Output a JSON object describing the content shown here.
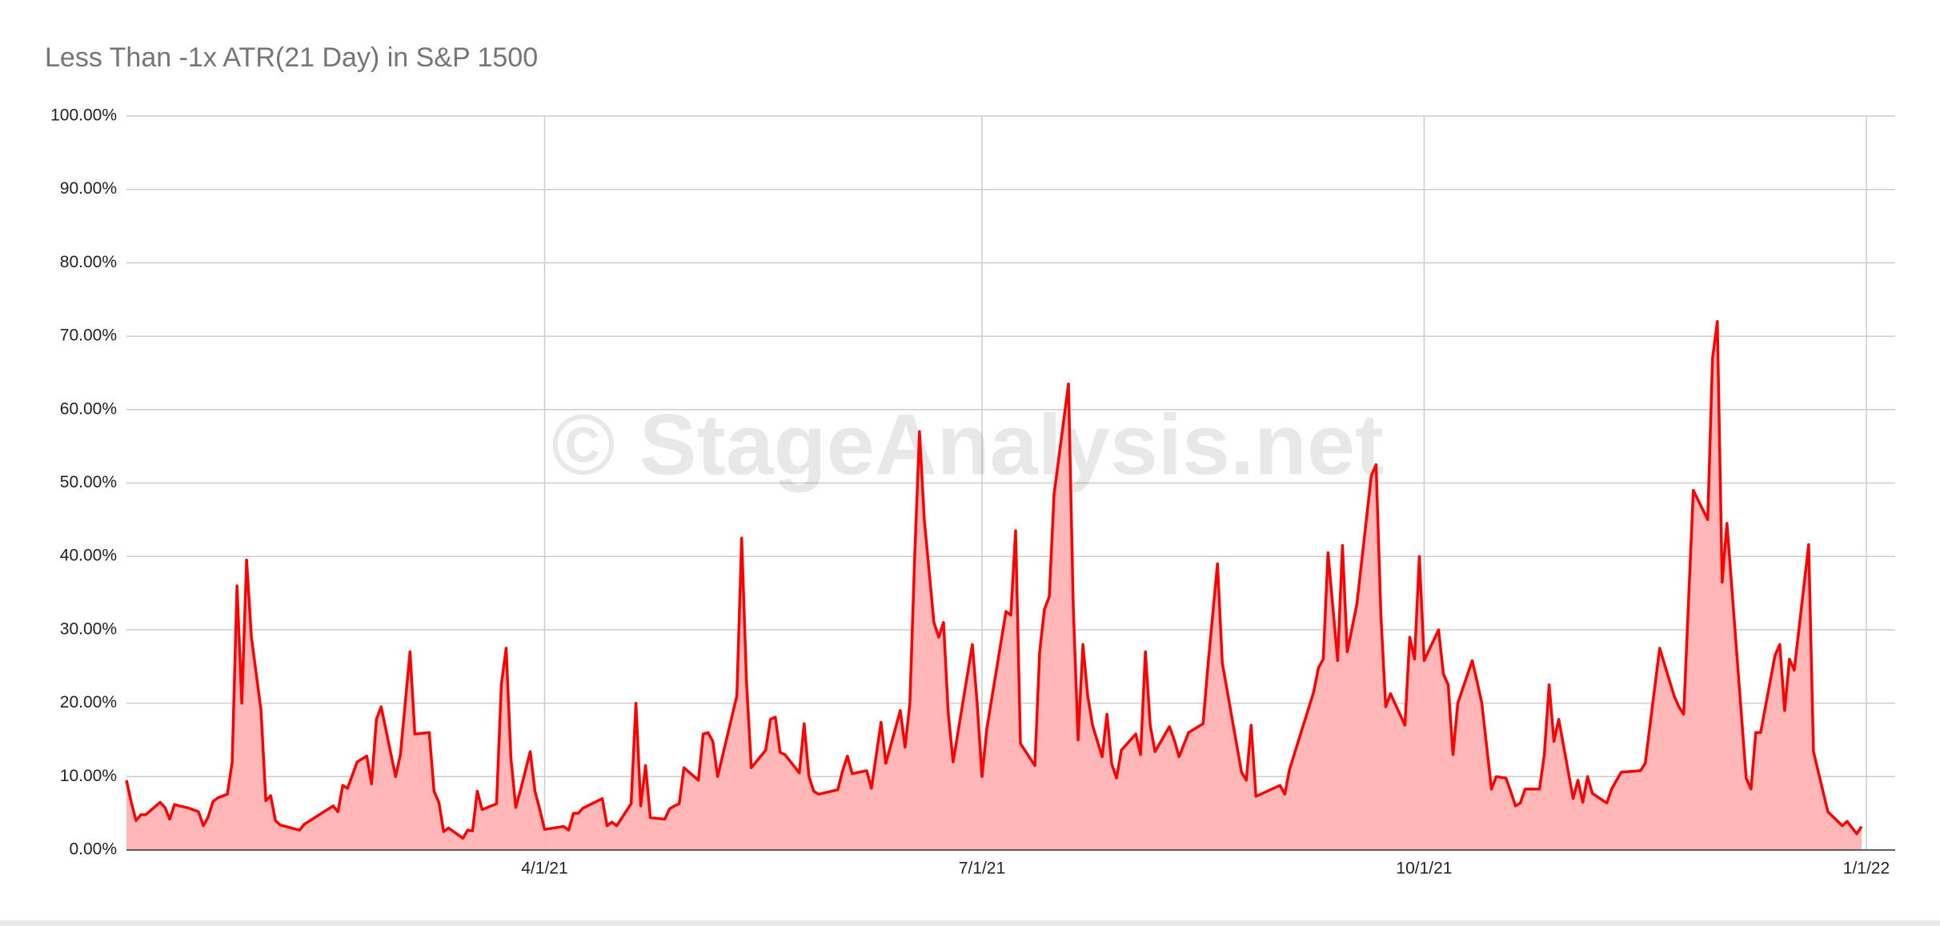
{
  "chart_data": {
    "type": "area",
    "title": "Less Than -1x ATR(21 Day) in S&P 1500",
    "watermark": "© StageAnalysis.net",
    "color": "#ff0000",
    "fill": "#ffb3b3",
    "xlim": [
      "2021-01-04",
      "2022-01-07"
    ],
    "xticks": [
      {
        "value": "2021-04-01",
        "label": "4/1/21"
      },
      {
        "value": "2021-07-01",
        "label": "7/1/21"
      },
      {
        "value": "2021-10-01",
        "label": "10/1/21"
      },
      {
        "value": "2022-01-01",
        "label": "1/1/22"
      }
    ],
    "ylim": [
      0,
      100
    ],
    "yticks": [
      {
        "value": 0,
        "label": "0.00%"
      },
      {
        "value": 10,
        "label": "10.00%"
      },
      {
        "value": 20,
        "label": "20.00%"
      },
      {
        "value": 30,
        "label": "30.00%"
      },
      {
        "value": 40,
        "label": "40.00%"
      },
      {
        "value": 50,
        "label": "50.00%"
      },
      {
        "value": 60,
        "label": "60.00%"
      },
      {
        "value": 70,
        "label": "70.00%"
      },
      {
        "value": 80,
        "label": "80.00%"
      },
      {
        "value": 90,
        "label": "90.00%"
      },
      {
        "value": 100,
        "label": "100.00%"
      }
    ],
    "grid": true,
    "x": [
      "2021-01-04",
      "2021-01-05",
      "2021-01-06",
      "2021-01-07",
      "2021-01-08",
      "2021-01-11",
      "2021-01-12",
      "2021-01-13",
      "2021-01-14",
      "2021-01-15",
      "2021-01-17",
      "2021-01-19",
      "2021-01-20",
      "2021-01-21",
      "2021-01-22",
      "2021-01-23",
      "2021-01-25",
      "2021-01-26",
      "2021-01-27",
      "2021-01-28",
      "2021-01-29",
      "2021-01-30",
      "2021-02-01",
      "2021-02-02",
      "2021-02-03",
      "2021-02-04",
      "2021-02-05",
      "2021-02-09",
      "2021-02-10",
      "2021-02-16",
      "2021-02-17",
      "2021-02-18",
      "2021-02-19",
      "2021-02-21",
      "2021-02-23",
      "2021-02-24",
      "2021-02-25",
      "2021-02-26",
      "2021-03-01",
      "2021-03-02",
      "2021-03-04",
      "2021-03-05",
      "2021-03-08",
      "2021-03-09",
      "2021-03-10",
      "2021-03-11",
      "2021-03-12",
      "2021-03-15",
      "2021-03-16",
      "2021-03-17",
      "2021-03-18",
      "2021-03-19",
      "2021-03-22",
      "2021-03-23",
      "2021-03-24",
      "2021-03-25",
      "2021-03-26",
      "2021-03-27",
      "2021-03-29",
      "2021-03-30",
      "2021-03-31",
      "2021-04-01",
      "2021-04-05",
      "2021-04-06",
      "2021-04-07",
      "2021-04-08",
      "2021-04-09",
      "2021-04-13",
      "2021-04-14",
      "2021-04-15",
      "2021-04-16",
      "2021-04-19",
      "2021-04-20",
      "2021-04-21",
      "2021-04-22",
      "2021-04-23",
      "2021-04-26",
      "2021-04-27",
      "2021-04-28",
      "2021-04-29",
      "2021-04-30",
      "2021-05-03",
      "2021-05-04",
      "2021-05-05",
      "2021-05-06",
      "2021-05-07",
      "2021-05-11",
      "2021-05-12",
      "2021-05-13",
      "2021-05-14",
      "2021-05-17",
      "2021-05-18",
      "2021-05-19",
      "2021-05-20",
      "2021-05-21",
      "2021-05-24",
      "2021-05-25",
      "2021-05-26",
      "2021-05-27",
      "2021-05-28",
      "2021-06-01",
      "2021-06-02",
      "2021-06-03",
      "2021-06-04",
      "2021-06-07",
      "2021-06-08",
      "2021-06-10",
      "2021-06-11",
      "2021-06-14",
      "2021-06-15",
      "2021-06-16",
      "2021-06-17",
      "2021-06-18",
      "2021-06-19",
      "2021-06-21",
      "2021-06-22",
      "2021-06-23",
      "2021-06-24",
      "2021-06-25",
      "2021-06-29",
      "2021-06-30",
      "2021-07-01",
      "2021-07-02",
      "2021-07-06",
      "2021-07-07",
      "2021-07-08",
      "2021-07-09",
      "2021-07-12",
      "2021-07-13",
      "2021-07-14",
      "2021-07-15",
      "2021-07-16",
      "2021-07-19",
      "2021-07-20",
      "2021-07-21",
      "2021-07-22",
      "2021-07-23",
      "2021-07-24",
      "2021-07-26",
      "2021-07-27",
      "2021-07-28",
      "2021-07-29",
      "2021-07-30",
      "2021-08-02",
      "2021-08-03",
      "2021-08-04",
      "2021-08-05",
      "2021-08-06",
      "2021-08-09",
      "2021-08-10",
      "2021-08-11",
      "2021-08-13",
      "2021-08-16",
      "2021-08-17",
      "2021-08-19",
      "2021-08-20",
      "2021-08-24",
      "2021-08-25",
      "2021-08-26",
      "2021-08-27",
      "2021-09-01",
      "2021-09-02",
      "2021-09-03",
      "2021-09-08",
      "2021-09-09",
      "2021-09-10",
      "2021-09-11",
      "2021-09-13",
      "2021-09-14",
      "2021-09-15",
      "2021-09-17",
      "2021-09-20",
      "2021-09-21",
      "2021-09-22",
      "2021-09-23",
      "2021-09-24",
      "2021-09-27",
      "2021-09-28",
      "2021-09-29",
      "2021-09-30",
      "2021-10-01",
      "2021-10-04",
      "2021-10-05",
      "2021-10-06",
      "2021-10-07",
      "2021-10-08",
      "2021-10-11",
      "2021-10-12",
      "2021-10-13",
      "2021-10-15",
      "2021-10-16",
      "2021-10-18",
      "2021-10-19",
      "2021-10-20",
      "2021-10-21",
      "2021-10-22",
      "2021-10-25",
      "2021-10-26",
      "2021-10-27",
      "2021-10-28",
      "2021-10-29",
      "2021-11-01",
      "2021-11-02",
      "2021-11-03",
      "2021-11-04",
      "2021-11-05",
      "2021-11-08",
      "2021-11-09",
      "2021-11-11",
      "2021-11-15",
      "2021-11-16",
      "2021-11-19",
      "2021-11-22",
      "2021-11-23",
      "2021-11-24",
      "2021-11-26",
      "2021-11-29",
      "2021-11-30",
      "2021-12-01",
      "2021-12-02",
      "2021-12-03",
      "2021-12-07",
      "2021-12-08",
      "2021-12-09",
      "2021-12-10",
      "2021-12-13",
      "2021-12-14",
      "2021-12-15",
      "2021-12-16",
      "2021-12-17",
      "2021-12-20",
      "2021-12-21",
      "2021-12-24",
      "2021-12-27",
      "2021-12-28",
      "2021-12-30",
      "2021-12-31"
    ],
    "values": [
      9.5,
      6.5,
      4,
      4.8,
      4.8,
      6.5,
      5.8,
      4.2,
      6.2,
      6,
      5.7,
      5.2,
      3.3,
      4.5,
      6.6,
      7.1,
      7.6,
      12,
      36,
      20,
      39.5,
      29,
      19,
      6.7,
      7.4,
      4,
      3.4,
      2.7,
      3.5,
      6,
      5.2,
      8.8,
      8.4,
      12,
      12.8,
      9,
      17.8,
      19.5,
      10,
      13,
      27,
      15.8,
      16,
      8,
      6.5,
      2.5,
      3,
      1.6,
      2.7,
      2.6,
      8,
      5.5,
      6.3,
      22.5,
      27.5,
      12.5,
      5.8,
      8.2,
      13.4,
      8,
      5.5,
      2.8,
      3.2,
      2.7,
      5,
      5,
      5.7,
      7,
      3.3,
      3.8,
      3.3,
      6.3,
      20,
      6,
      11.5,
      4.4,
      4.2,
      5.6,
      6,
      6.3,
      11.2,
      9.5,
      15.8,
      16,
      14.8,
      10,
      21,
      42.5,
      23,
      11.2,
      13.6,
      17.8,
      18.1,
      13.3,
      13,
      10.5,
      17.2,
      10,
      8,
      7.6,
      8.2,
      10.8,
      12.8,
      10.4,
      10.8,
      8.4,
      17.4,
      11.8,
      19,
      14,
      20,
      40,
      57,
      45,
      31,
      29,
      31,
      18.5,
      12,
      28,
      20,
      10,
      16.5,
      32.5,
      32,
      43.5,
      14.5,
      11.5,
      27,
      32.8,
      34.5,
      48.5,
      63.5,
      33,
      15,
      28,
      21,
      17,
      12.7,
      18.5,
      11.7,
      9.8,
      13.6,
      15.8,
      13,
      27,
      17,
      13.4,
      16.8,
      15,
      12.7,
      16,
      17.2,
      25,
      39,
      25.5,
      10.6,
      9.5,
      17,
      7.3,
      8.8,
      7.6,
      11,
      21.5,
      24.8,
      26,
      40.5,
      25.8,
      41.5,
      27,
      33.5,
      51,
      52.5,
      32,
      19.5,
      21.3,
      17,
      29,
      26,
      40,
      25.8,
      30,
      24,
      22.5,
      13,
      20,
      25.8,
      23,
      20,
      8.3,
      10,
      9.8,
      8,
      6,
      6.4,
      8.3,
      8.3,
      13,
      22.5,
      14.8,
      17.8,
      7,
      9.5,
      6.5,
      10,
      7.7,
      6.4,
      8.3,
      10.6,
      10.8,
      11.8,
      27.5,
      21,
      19.5,
      18.5,
      49,
      45,
      67,
      72,
      36.5,
      44.5,
      9.8,
      8.3,
      16,
      16,
      26.5,
      28,
      19,
      26,
      24.5,
      41.6,
      13.4,
      5.2,
      3.3,
      3.9,
      2.2,
      3.2
    ]
  }
}
